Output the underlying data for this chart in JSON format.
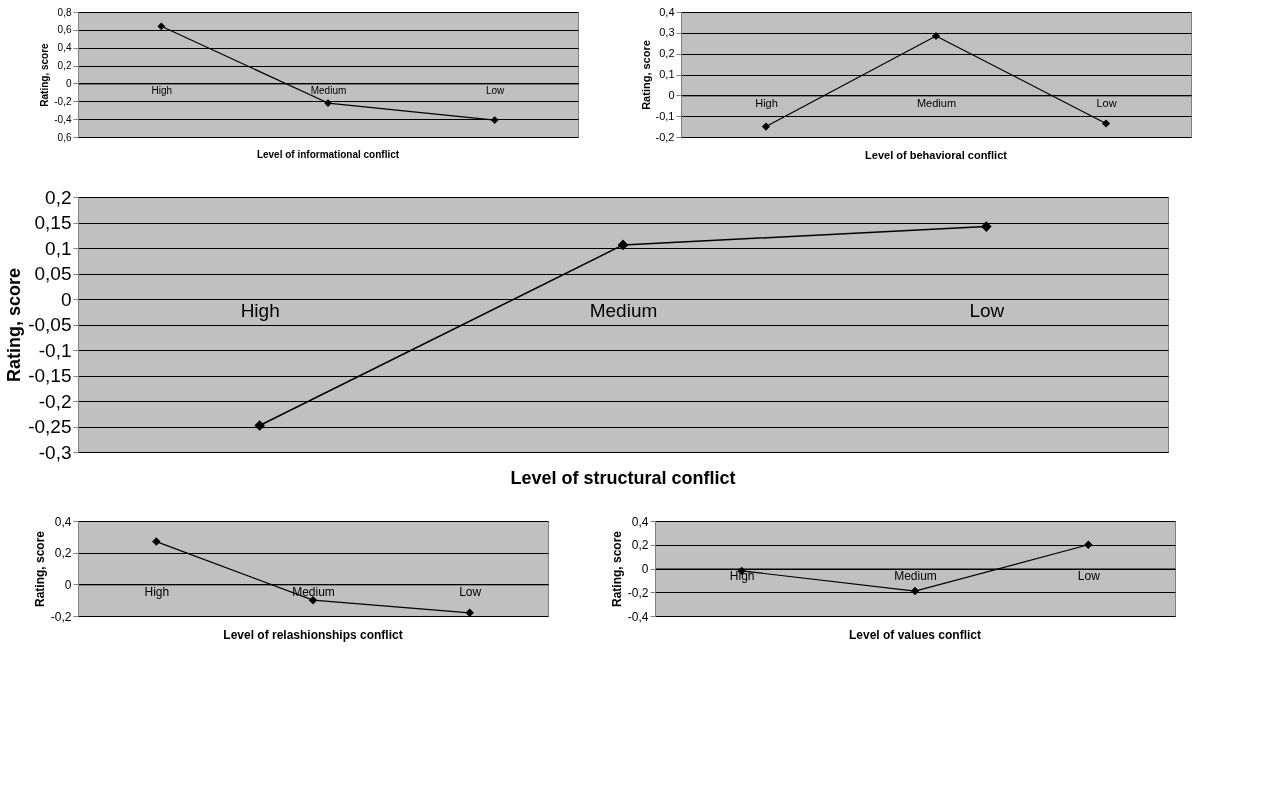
{
  "chart_data": [
    {
      "type": "line",
      "xlabel": "Level of informational conflict",
      "ylabel": "Rating, score",
      "categories": [
        "High",
        "Medium",
        "Low"
      ],
      "series": [
        {
          "color": "#000000",
          "values": [
            0.64,
            -0.22,
            -0.41
          ]
        }
      ],
      "ylim": [
        -0.6,
        0.8
      ],
      "yticks": [
        {
          "value": -0.6,
          "label": "0,6"
        },
        {
          "value": -0.4,
          "label": "-0,4"
        },
        {
          "value": -0.2,
          "label": "-0,2"
        },
        0,
        {
          "value": 0.2,
          "label": "0,2"
        },
        {
          "value": 0.4,
          "label": "0,4"
        },
        {
          "value": 0.6,
          "label": "0,6"
        },
        {
          "value": 0.8,
          "label": "0,8"
        }
      ],
      "grid": "y",
      "marker": "diamond",
      "line_style": "solid"
    },
    {
      "type": "line",
      "xlabel": "Level of behavioral conflict",
      "ylabel": "Rating, score",
      "categories": [
        "High",
        "Medium",
        "Low"
      ],
      "series": [
        {
          "color": "#000000",
          "values": [
            -0.15,
            0.285,
            -0.135
          ]
        }
      ],
      "ylim": [
        -0.2,
        0.4
      ],
      "yticks": [
        {
          "value": -0.2,
          "label": "-0,2"
        },
        {
          "value": -0.1,
          "label": "-0,1"
        },
        0,
        {
          "value": 0.1,
          "label": "0,1"
        },
        {
          "value": 0.2,
          "label": "0,2"
        },
        {
          "value": 0.3,
          "label": "0,3"
        },
        {
          "value": 0.4,
          "label": "0,4"
        }
      ],
      "grid": "y",
      "marker": "diamond",
      "line_style": "solid"
    },
    {
      "type": "line",
      "xlabel": "Level of structural conflict",
      "ylabel": "Rating, score",
      "categories": [
        "High",
        "Medium",
        "Low"
      ],
      "series": [
        {
          "color": "#000000",
          "values": [
            -0.248,
            0.106,
            0.142
          ]
        }
      ],
      "ylim": [
        -0.3,
        0.2
      ],
      "yticks": [
        {
          "value": -0.3,
          "label": "-0,3"
        },
        {
          "value": -0.25,
          "label": "-0,25"
        },
        {
          "value": -0.2,
          "label": "-0,2"
        },
        {
          "value": -0.15,
          "label": "-0,15"
        },
        {
          "value": -0.1,
          "label": "-0,1"
        },
        {
          "value": -0.05,
          "label": "-0,05"
        },
        0,
        {
          "value": 0.05,
          "label": "0,05"
        },
        {
          "value": 0.1,
          "label": "0,1"
        },
        {
          "value": 0.15,
          "label": "0,15"
        },
        {
          "value": 0.2,
          "label": "0,2"
        }
      ],
      "grid": "y",
      "marker": "diamond",
      "line_style": "solid"
    },
    {
      "type": "line",
      "xlabel": "Level of relashionships  conflict",
      "ylabel": "Rating,  score",
      "categories": [
        "High",
        "Medium",
        "Low"
      ],
      "series": [
        {
          "color": "#000000",
          "values": [
            0.27,
            -0.1,
            -0.18
          ]
        }
      ],
      "ylim": [
        -0.2,
        0.4
      ],
      "yticks": [
        {
          "value": -0.2,
          "label": "-0,2"
        },
        0,
        {
          "value": 0.2,
          "label": "0,2"
        },
        {
          "value": 0.4,
          "label": "0,4"
        }
      ],
      "grid": "y",
      "marker": "diamond",
      "line_style": "solid"
    },
    {
      "type": "line",
      "xlabel": "Level of  values conflict",
      "ylabel": "Rating, score",
      "categories": [
        "High",
        "Medium",
        "Low"
      ],
      "series": [
        {
          "color": "#000000",
          "values": [
            -0.02,
            -0.19,
            0.2
          ]
        }
      ],
      "ylim": [
        -0.4,
        0.4
      ],
      "yticks": [
        {
          "value": -0.4,
          "label": "-0,4"
        },
        {
          "value": -0.2,
          "label": "-0,2"
        },
        0,
        {
          "value": 0.2,
          "label": "0,2"
        },
        {
          "value": 0.4,
          "label": "0,4"
        }
      ],
      "grid": "y",
      "marker": "diamond",
      "line_style": "solid"
    }
  ]
}
